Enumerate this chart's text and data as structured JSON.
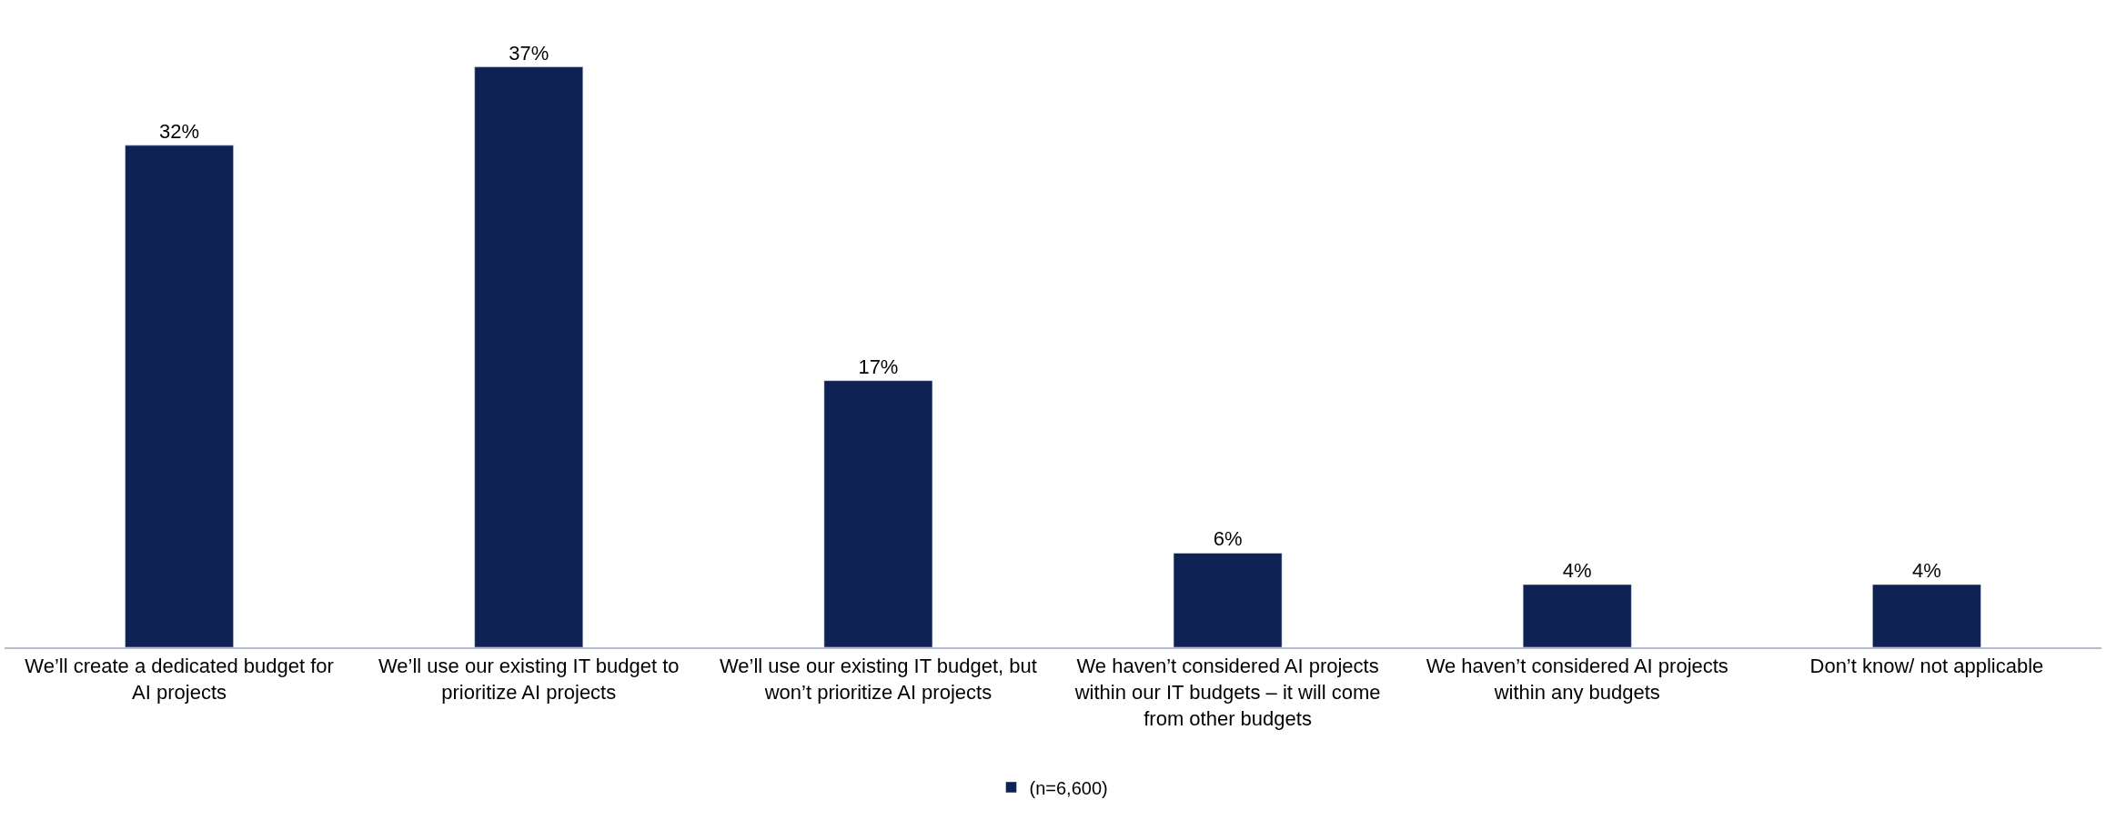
{
  "chart_data": {
    "type": "bar",
    "categories": [
      "We’ll create a dedicated budget for AI projects",
      "We’ll use our existing IT budget to prioritize AI projects",
      "We’ll use our existing IT budget, but won’t prioritize AI projects",
      "We haven’t considered AI projects within our IT budgets – it will come from other budgets",
      "We haven’t considered AI projects within any budgets",
      "Don’t know/ not applicable"
    ],
    "series": [
      {
        "name": "(n=6,600)",
        "color": "#0f2254",
        "values": [
          32,
          37,
          17,
          6,
          4,
          4
        ],
        "value_labels": [
          "32%",
          "37%",
          "17%",
          "6%",
          "4%",
          "4%"
        ]
      }
    ],
    "tick_labels": "x",
    "legend": "bottom"
  }
}
